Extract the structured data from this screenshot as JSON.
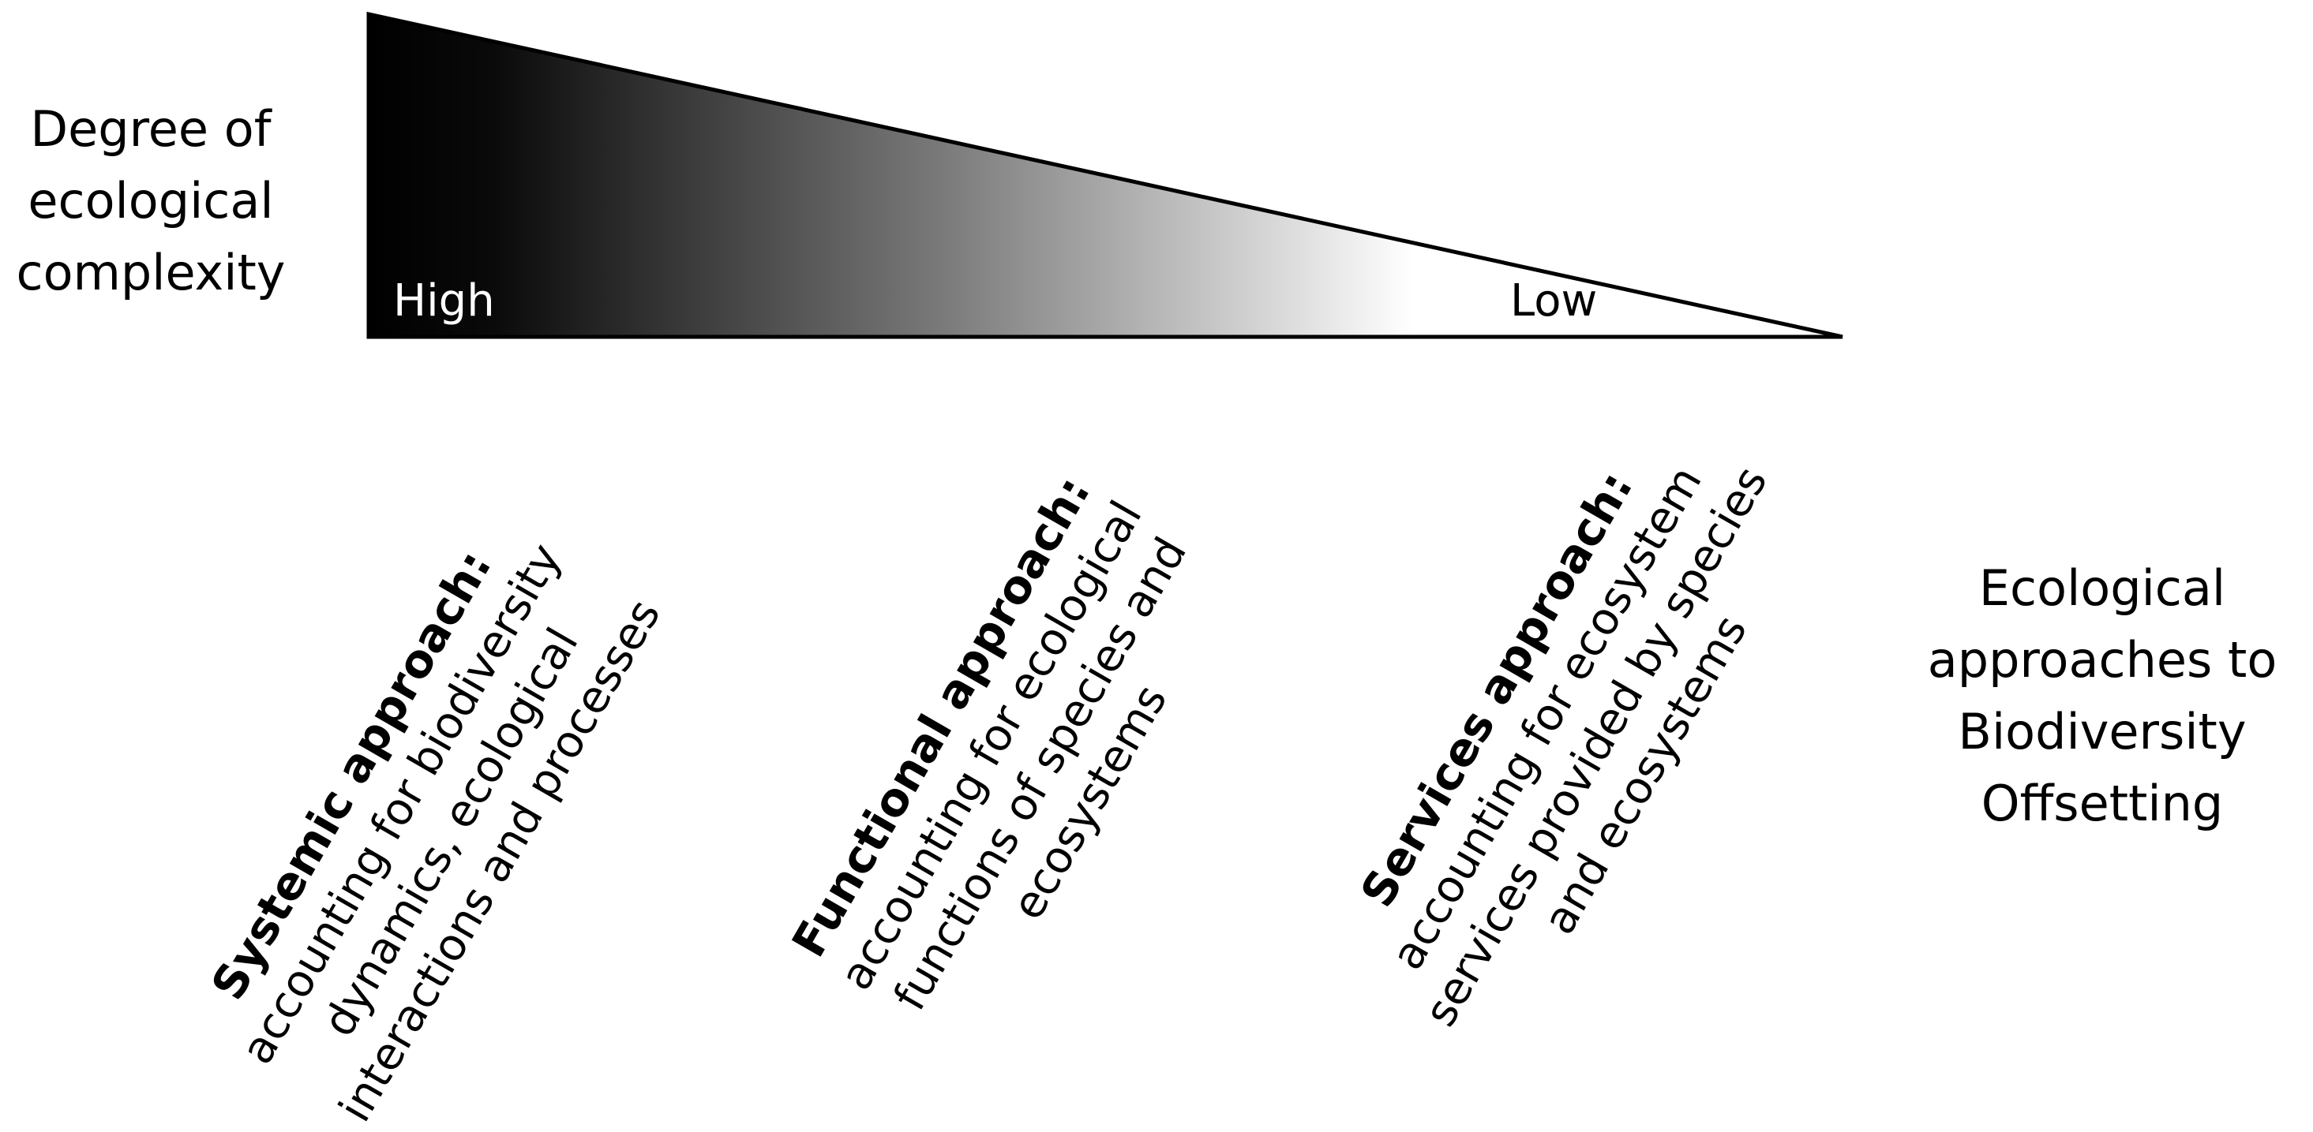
{
  "axis_left": {
    "lines": [
      "Degree of",
      "ecological",
      "complexity"
    ]
  },
  "axis_right": {
    "lines": [
      "Ecological",
      "approaches to",
      "Biodiversity",
      "Offsetting"
    ]
  },
  "triangle": {
    "high_label": "High",
    "low_label": "Low",
    "gradient": [
      "#000000",
      "#ffffff"
    ]
  },
  "approaches": [
    {
      "name": "Systemic approach",
      "sep": ":",
      "line1": " accounting for biodiversity",
      "line2": "dynamics, ecological",
      "line3": "interactions and processes"
    },
    {
      "name": "Functional approach",
      "sep": ":",
      "line1": " accounting for ecological",
      "line2": "functions of species and",
      "line3": "ecosystems"
    },
    {
      "name": "Services approach",
      "sep": ":",
      "line1": " accounting for ecosystem",
      "line2": "services provided by species",
      "line3": "and ecosystems"
    }
  ]
}
